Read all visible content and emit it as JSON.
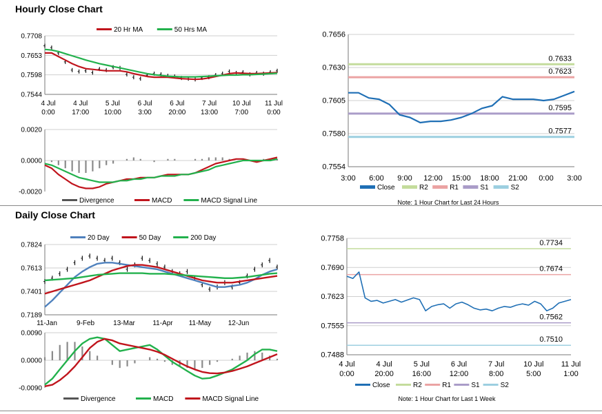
{
  "titles": {
    "hourly": "Hourly Close Chart",
    "daily": "Daily Close Chart"
  },
  "chart_data": [
    {
      "id": "hourly-ma",
      "type": "line",
      "legend": [
        {
          "name": "20 Hr MA",
          "color": "#c0141c"
        },
        {
          "name": "50 Hrs MA",
          "color": "#22b14c"
        }
      ],
      "y_ticks": [
        "0.7708",
        "0.7653",
        "0.7598",
        "0.7544"
      ],
      "ylim": [
        0.7544,
        0.7708
      ],
      "x_ticks": [
        [
          "4 Jul",
          "0:00"
        ],
        [
          "4 Jul",
          "17:00"
        ],
        [
          "5 Jul",
          "10:00"
        ],
        [
          "6 Jul",
          "3:00"
        ],
        [
          "6 Jul",
          "20:00"
        ],
        [
          "7 Jul",
          "13:00"
        ],
        [
          "10 Jul",
          "7:00"
        ],
        [
          "11 Jul",
          "0:00"
        ]
      ],
      "price": [
        0.768,
        0.7675,
        0.766,
        0.7635,
        0.7612,
        0.7608,
        0.761,
        0.7605,
        0.7615,
        0.7612,
        0.762,
        0.7618,
        0.76,
        0.7592,
        0.7588,
        0.7598,
        0.7602,
        0.76,
        0.7596,
        0.7594,
        0.759,
        0.7588,
        0.7586,
        0.759,
        0.7592,
        0.7598,
        0.7602,
        0.7608,
        0.7604,
        0.7606,
        0.76,
        0.7604,
        0.7602,
        0.7606,
        0.761
      ],
      "series": [
        {
          "name": "20 Hr MA",
          "color": "#c0141c",
          "values": [
            0.766,
            0.766,
            0.765,
            0.764,
            0.763,
            0.7622,
            0.7616,
            0.7614,
            0.7612,
            0.761,
            0.761,
            0.761,
            0.7607,
            0.7602,
            0.7598,
            0.7594,
            0.7592,
            0.7592,
            0.7592,
            0.759,
            0.7588,
            0.7587,
            0.7586,
            0.7587,
            0.759,
            0.7594,
            0.7598,
            0.7602,
            0.7604,
            0.7603,
            0.7602,
            0.7602,
            0.7603,
            0.7604,
            0.7605
          ]
        },
        {
          "name": "50 Hrs MA",
          "color": "#22b14c",
          "values": [
            0.767,
            0.7668,
            0.7664,
            0.7658,
            0.7652,
            0.7646,
            0.764,
            0.7635,
            0.763,
            0.7626,
            0.7622,
            0.7618,
            0.7614,
            0.761,
            0.7606,
            0.7602,
            0.7599,
            0.7597,
            0.7595,
            0.7594,
            0.7593,
            0.7593,
            0.7593,
            0.7594,
            0.7595,
            0.7596,
            0.7597,
            0.7598,
            0.7598,
            0.7599,
            0.7599,
            0.76,
            0.7601,
            0.7602,
            0.7603
          ]
        }
      ]
    },
    {
      "id": "hourly-macd",
      "type": "line",
      "y_ticks": [
        "0.0020",
        "0.0000",
        "-0.0020"
      ],
      "ylim": [
        -0.002,
        0.002
      ],
      "legend": [
        {
          "name": "Divergence",
          "color": "#555555"
        },
        {
          "name": "MACD",
          "color": "#c0141c"
        },
        {
          "name": "MACD Signal Line",
          "color": "#22b14c"
        }
      ],
      "divergence": [
        0,
        -0.0001,
        -0.0003,
        -0.0005,
        -0.0007,
        -0.0008,
        -0.0008,
        -0.0007,
        -0.0005,
        -0.0003,
        -0.0002,
        0,
        0.0001,
        0.0002,
        0.0001,
        0,
        -0.0001,
        0,
        0.0001,
        0.0001,
        0,
        0,
        0.0001,
        0.0001,
        0.0002,
        0.0002,
        0.0002,
        0.0001,
        0,
        0,
        0,
        0,
        0.0001,
        0.0001,
        0.0001
      ],
      "series": [
        {
          "name": "MACD",
          "color": "#c0141c",
          "values": [
            -0.0003,
            -0.0005,
            -0.0009,
            -0.0012,
            -0.0015,
            -0.0017,
            -0.0018,
            -0.0018,
            -0.0017,
            -0.0015,
            -0.0014,
            -0.0013,
            -0.0012,
            -0.0012,
            -0.0011,
            -0.0011,
            -0.0011,
            -0.001,
            -0.0009,
            -0.0009,
            -0.0009,
            -0.0009,
            -0.0008,
            -0.0006,
            -0.0004,
            -0.0002,
            -0.0001,
            0.0,
            0.0001,
            0.0001,
            0.0,
            -0.0001,
            0.0,
            0.0001,
            0.0002
          ]
        },
        {
          "name": "MACD Signal Line",
          "color": "#22b14c",
          "values": [
            -0.0002,
            -0.0003,
            -0.0005,
            -0.0007,
            -0.0009,
            -0.0011,
            -0.0012,
            -0.0013,
            -0.0014,
            -0.0014,
            -0.0014,
            -0.0013,
            -0.0013,
            -0.0012,
            -0.0012,
            -0.0011,
            -0.0011,
            -0.001,
            -0.001,
            -0.001,
            -0.0009,
            -0.0009,
            -0.0008,
            -0.0007,
            -0.0006,
            -0.0004,
            -0.0003,
            -0.0002,
            -0.0001,
            0.0,
            0.0,
            0.0,
            0.0,
            0.0,
            0.0001
          ]
        }
      ]
    },
    {
      "id": "hourly-pivot",
      "type": "line",
      "y_ticks": [
        "0.7656",
        "0.7630",
        "0.7605",
        "0.7580",
        "0.7554"
      ],
      "ylim": [
        0.7554,
        0.7656
      ],
      "x_ticks": [
        "3:00",
        "6:00",
        "9:00",
        "12:00",
        "15:00",
        "18:00",
        "21:00",
        "0:00",
        "3:00"
      ],
      "close": [
        0.7611,
        0.7611,
        0.7607,
        0.7606,
        0.7602,
        0.7594,
        0.7592,
        0.7588,
        0.7589,
        0.7589,
        0.759,
        0.7592,
        0.7595,
        0.7599,
        0.7601,
        0.7608,
        0.7606,
        0.7606,
        0.7606,
        0.7605,
        0.7606,
        0.7609,
        0.7612
      ],
      "levels": [
        {
          "name": "R2",
          "value": 0.7633,
          "label": "0.7633",
          "color": "#c4dc9c"
        },
        {
          "name": "R1",
          "value": 0.7623,
          "label": "0.7623",
          "color": "#eba3a3"
        },
        {
          "name": "S1",
          "value": 0.7595,
          "label": "0.7595",
          "color": "#aa9cc8"
        },
        {
          "name": "S2",
          "value": 0.7577,
          "label": "0.7577",
          "color": "#9ccfe0"
        }
      ],
      "legend": [
        {
          "name": "Close",
          "color": "#1f6fb5"
        },
        {
          "name": "R2",
          "color": "#c4dc9c"
        },
        {
          "name": "R1",
          "color": "#eba3a3"
        },
        {
          "name": "S1",
          "color": "#aa9cc8"
        },
        {
          "name": "S2",
          "color": "#9ccfe0"
        }
      ],
      "note": "Note: 1 Hour Chart for Last 24 Hours"
    },
    {
      "id": "daily-ma",
      "type": "line",
      "legend": [
        {
          "name": "20 Day",
          "color": "#4f81bd"
        },
        {
          "name": "50 Day",
          "color": "#c0141c"
        },
        {
          "name": "200 Day",
          "color": "#22b14c"
        }
      ],
      "y_ticks": [
        "0.7824",
        "0.7613",
        "0.7401",
        "0.7189"
      ],
      "ylim": [
        0.7189,
        0.7824
      ],
      "x_ticks": [
        "11-Jan",
        "9-Feb",
        "13-Mar",
        "11-Apr",
        "11-May",
        "12-Jun"
      ],
      "price": [
        0.749,
        0.752,
        0.756,
        0.76,
        0.766,
        0.77,
        0.772,
        0.77,
        0.768,
        0.77,
        0.766,
        0.76,
        0.764,
        0.77,
        0.768,
        0.765,
        0.762,
        0.758,
        0.756,
        0.758,
        0.752,
        0.746,
        0.742,
        0.744,
        0.748,
        0.744,
        0.748,
        0.754,
        0.76,
        0.764,
        0.768,
        0.762
      ],
      "series": [
        {
          "name": "20 Day",
          "color": "#4f81bd",
          "values": [
            0.726,
            0.732,
            0.739,
            0.746,
            0.753,
            0.758,
            0.762,
            0.765,
            0.766,
            0.766,
            0.765,
            0.764,
            0.763,
            0.762,
            0.761,
            0.76,
            0.758,
            0.756,
            0.754,
            0.752,
            0.75,
            0.748,
            0.746,
            0.744,
            0.744,
            0.745,
            0.746,
            0.748,
            0.751,
            0.755,
            0.758,
            0.76
          ]
        },
        {
          "name": "50 Day",
          "color": "#c0141c",
          "values": [
            0.738,
            0.74,
            0.742,
            0.744,
            0.746,
            0.748,
            0.75,
            0.753,
            0.756,
            0.759,
            0.761,
            0.763,
            0.764,
            0.764,
            0.763,
            0.762,
            0.76,
            0.758,
            0.756,
            0.754,
            0.752,
            0.75,
            0.749,
            0.748,
            0.748,
            0.748,
            0.749,
            0.75,
            0.751,
            0.752,
            0.753,
            0.754
          ]
        },
        {
          "name": "200 Day",
          "color": "#22b14c",
          "values": [
            0.75,
            0.7505,
            0.751,
            0.7515,
            0.752,
            0.753,
            0.754,
            0.755,
            0.7555,
            0.756,
            0.7565,
            0.7565,
            0.7565,
            0.7565,
            0.756,
            0.756,
            0.756,
            0.7555,
            0.755,
            0.7545,
            0.754,
            0.7535,
            0.753,
            0.7525,
            0.752,
            0.752,
            0.7525,
            0.753,
            0.754,
            0.755,
            0.756,
            0.7565
          ]
        }
      ]
    },
    {
      "id": "daily-macd",
      "type": "line",
      "y_ticks": [
        "0.0090",
        "0.0000",
        "-0.0090"
      ],
      "ylim": [
        -0.009,
        0.009
      ],
      "legend": [
        {
          "name": "Divergence",
          "color": "#555555"
        },
        {
          "name": "MACD",
          "color": "#22b14c"
        },
        {
          "name": "MACD Signal Line",
          "color": "#c0141c"
        }
      ],
      "divergence": [
        0.001,
        0.003,
        0.005,
        0.006,
        0.006,
        0.0045,
        0.003,
        0.0015,
        0.0,
        -0.0015,
        -0.0025,
        -0.002,
        -0.001,
        0.0,
        0.001,
        0.0005,
        -0.0005,
        -0.0015,
        -0.002,
        -0.0025,
        -0.003,
        -0.0025,
        -0.0015,
        -0.0005,
        0.0,
        0.0005,
        0.0015,
        0.0025,
        0.003,
        0.0025,
        0.0015,
        0.0005
      ],
      "series": [
        {
          "name": "MACD",
          "color": "#22b14c",
          "values": [
            -0.008,
            -0.006,
            -0.003,
            0.0,
            0.003,
            0.0055,
            0.007,
            0.0075,
            0.007,
            0.005,
            0.003,
            0.0035,
            0.004,
            0.0045,
            0.005,
            0.0035,
            0.0015,
            -0.0005,
            -0.002,
            -0.0035,
            -0.005,
            -0.006,
            -0.0058,
            -0.005,
            -0.004,
            -0.003,
            -0.0015,
            0.0,
            0.002,
            0.0035,
            0.0035,
            0.003
          ]
        },
        {
          "name": "MACD Signal Line",
          "color": "#c0141c",
          "values": [
            -0.0085,
            -0.008,
            -0.0065,
            -0.0045,
            -0.002,
            0.001,
            0.004,
            0.006,
            0.007,
            0.0065,
            0.0055,
            0.005,
            0.0045,
            0.004,
            0.0035,
            0.0028,
            0.0018,
            0.0005,
            -0.0008,
            -0.002,
            -0.003,
            -0.0038,
            -0.0042,
            -0.0043,
            -0.004,
            -0.0035,
            -0.0028,
            -0.002,
            -0.001,
            0.0,
            0.001,
            0.002
          ]
        }
      ]
    },
    {
      "id": "daily-pivot",
      "type": "line",
      "y_ticks": [
        "0.7758",
        "0.7690",
        "0.7623",
        "0.7555",
        "0.7488"
      ],
      "ylim": [
        0.7488,
        0.7758
      ],
      "x_ticks": [
        [
          "4 Jul",
          "0:00"
        ],
        [
          "4 Jul",
          "20:00"
        ],
        [
          "5 Jul",
          "16:00"
        ],
        [
          "6 Jul",
          "12:00"
        ],
        [
          "7 Jul",
          "8:00"
        ],
        [
          "10 Jul",
          "5:00"
        ],
        [
          "11 Jul",
          "1:00"
        ]
      ],
      "close": [
        0.767,
        0.7665,
        0.768,
        0.762,
        0.7612,
        0.7614,
        0.7608,
        0.7612,
        0.7616,
        0.761,
        0.7615,
        0.762,
        0.7616,
        0.759,
        0.76,
        0.7604,
        0.7606,
        0.7596,
        0.7606,
        0.761,
        0.7604,
        0.7596,
        0.7592,
        0.7594,
        0.759,
        0.7596,
        0.76,
        0.7598,
        0.7603,
        0.7606,
        0.7603,
        0.7612,
        0.7606,
        0.759,
        0.7596,
        0.7608,
        0.7612,
        0.7616
      ],
      "levels": [
        {
          "name": "R2",
          "value": 0.7734,
          "label": "0.7734",
          "color": "#c4dc9c"
        },
        {
          "name": "R1",
          "value": 0.7674,
          "label": "0.7674",
          "color": "#eba3a3"
        },
        {
          "name": "S1",
          "value": 0.7562,
          "label": "0.7562",
          "color": "#aa9cc8"
        },
        {
          "name": "S2",
          "value": 0.751,
          "label": "0.7510",
          "color": "#9ccfe0"
        }
      ],
      "legend": [
        {
          "name": "Close",
          "color": "#1f6fb5"
        },
        {
          "name": "R2",
          "color": "#c4dc9c"
        },
        {
          "name": "R1",
          "color": "#eba3a3"
        },
        {
          "name": "S1",
          "color": "#aa9cc8"
        },
        {
          "name": "S2",
          "color": "#9ccfe0"
        }
      ],
      "note": "Note: 1 Hour Chart for Last 1 Week"
    }
  ]
}
